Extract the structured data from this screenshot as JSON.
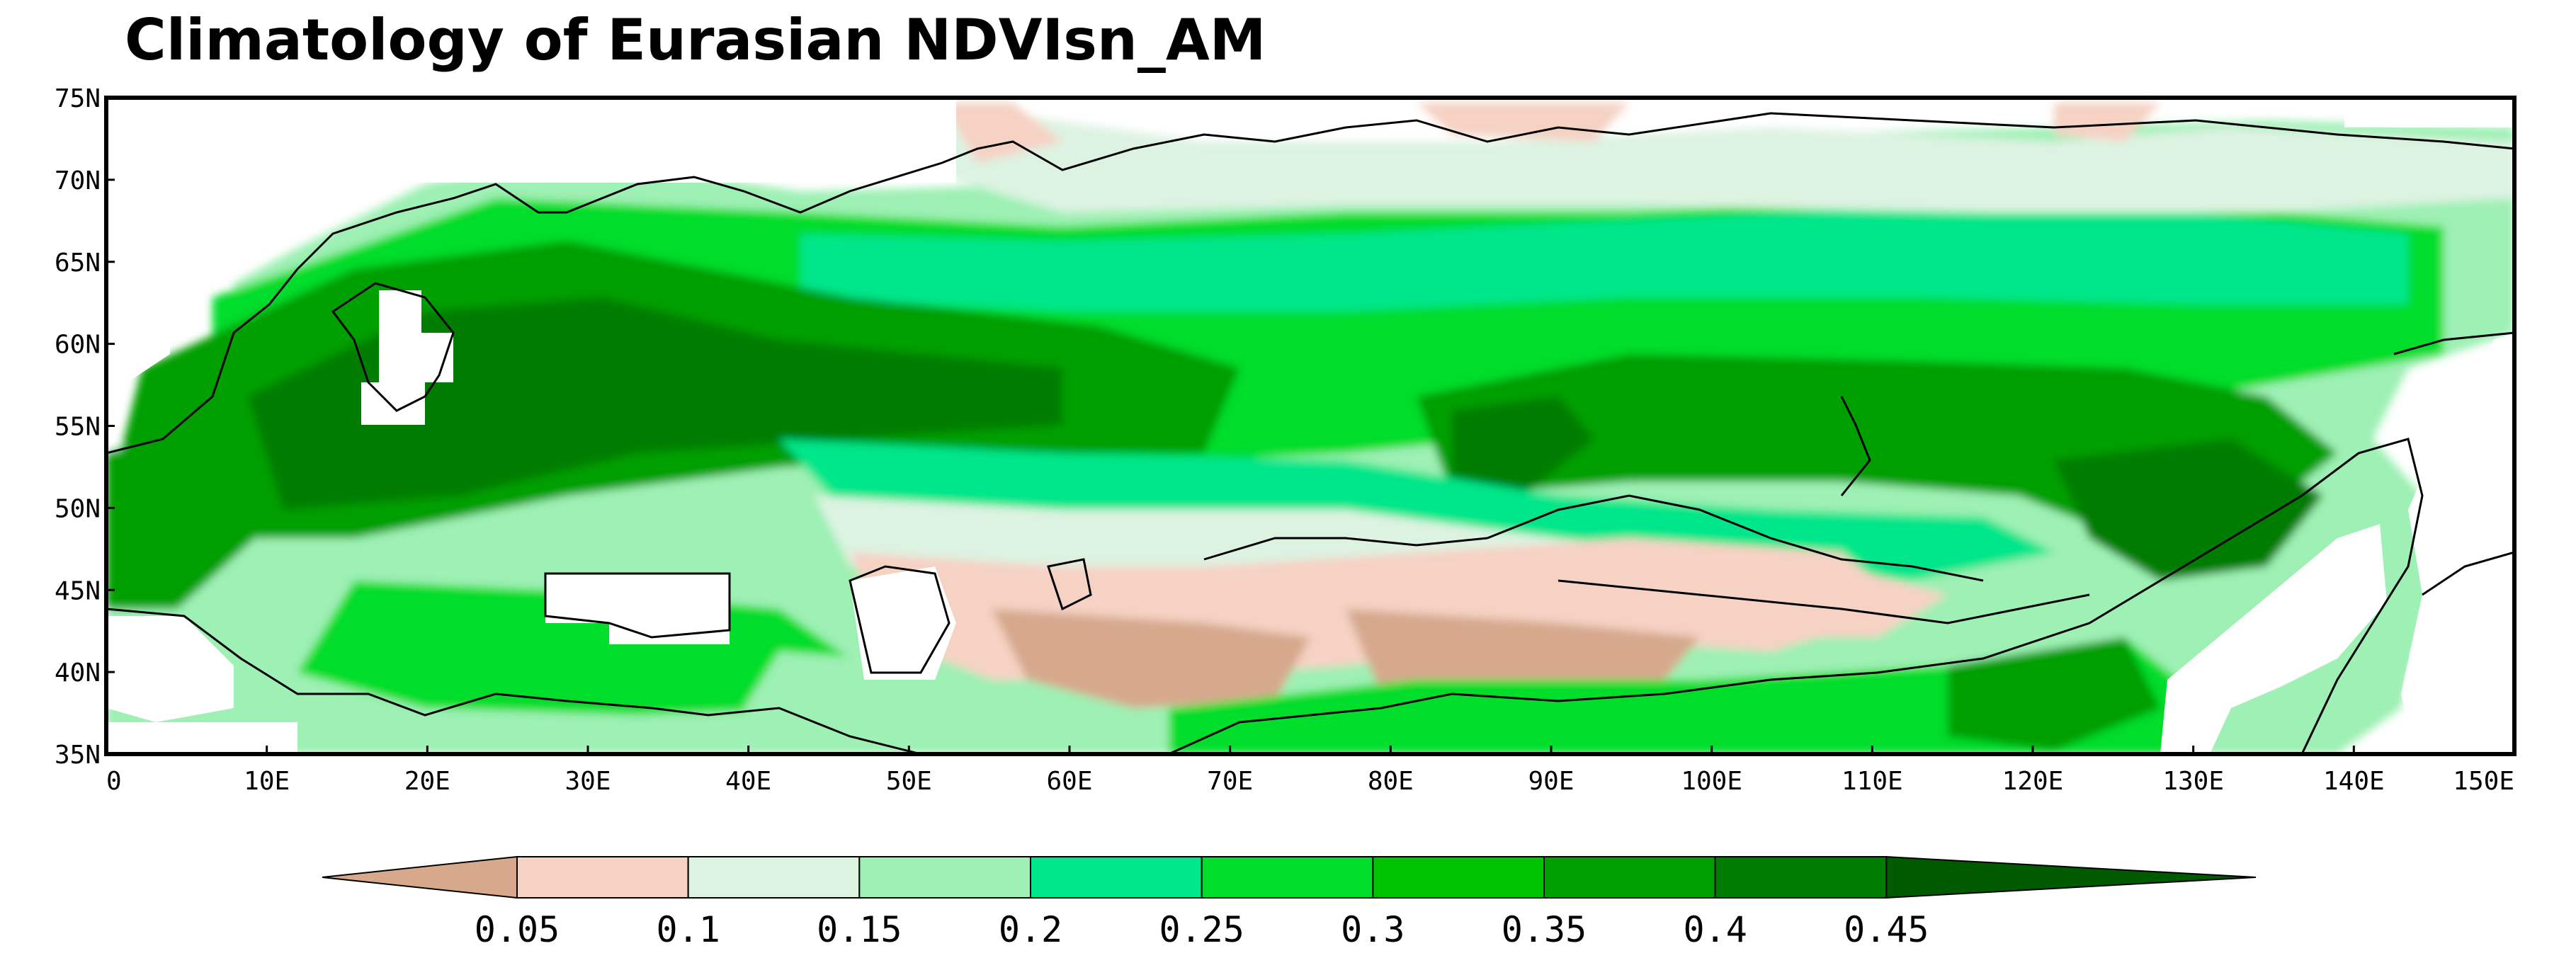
{
  "title": "Climatology of Eurasian NDVIsn_AM",
  "map": {
    "lon_range": [
      0,
      150
    ],
    "lat_range": [
      35,
      75
    ],
    "lat_ticks": [
      "35N",
      "40N",
      "45N",
      "50N",
      "55N",
      "60N",
      "65N",
      "70N",
      "75N"
    ],
    "lon_ticks": [
      "0",
      "10E",
      "20E",
      "30E",
      "40E",
      "50E",
      "60E",
      "70E",
      "80E",
      "90E",
      "100E",
      "110E",
      "120E",
      "130E",
      "140E",
      "150E"
    ]
  },
  "colorbar": {
    "labels": [
      "0.05",
      "0.1",
      "0.15",
      "0.2",
      "0.25",
      "0.3",
      "0.35",
      "0.4",
      "0.45"
    ],
    "colors": [
      "#d6a98d",
      "#f6d2c4",
      "#ddf3e2",
      "#9ef0b4",
      "#00e68a",
      "#00dd2a",
      "#00c400",
      "#009f00",
      "#007d00",
      "#005a00"
    ]
  }
}
